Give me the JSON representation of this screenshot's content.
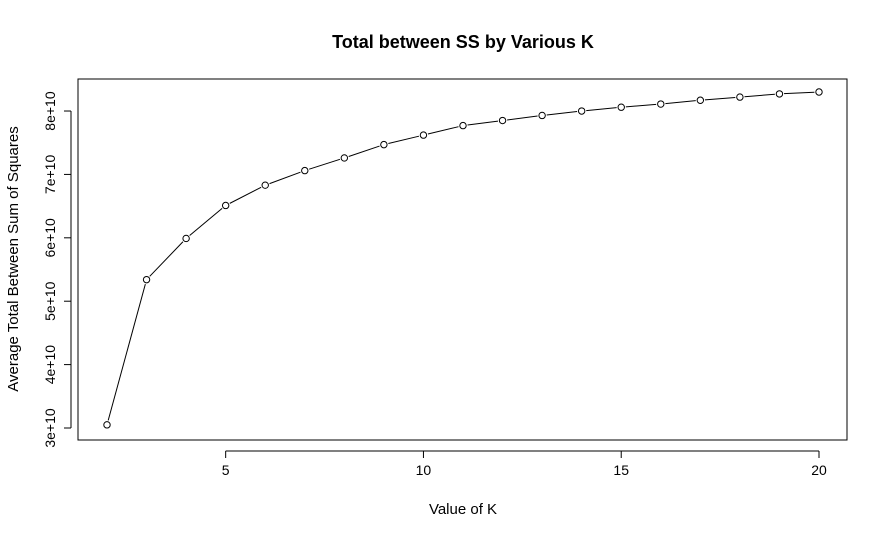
{
  "chart_data": {
    "type": "line",
    "title": "Total between SS by Various K",
    "xlabel": "Value of K",
    "ylabel": "Average Total Between Sum of Squares",
    "xlim": [
      2,
      20
    ],
    "ylim": [
      30000000000,
      83000000000
    ],
    "x_ticks": [
      5,
      10,
      15,
      20
    ],
    "x_tick_labels": [
      "5",
      "10",
      "15",
      "20"
    ],
    "y_ticks": [
      30000000000,
      40000000000,
      50000000000,
      60000000000,
      70000000000,
      80000000000
    ],
    "y_tick_labels": [
      "3e+10",
      "4e+10",
      "5e+10",
      "6e+10",
      "7e+10",
      "8e+10"
    ],
    "grid": false,
    "marker": "open-circle",
    "series": [
      {
        "x": [
          2,
          3,
          4,
          5,
          6,
          7,
          8,
          9,
          10,
          11,
          12,
          13,
          14,
          15,
          16,
          17,
          18,
          19,
          20
        ],
        "values": [
          30500000000,
          53400000000,
          59900000000,
          65100000000,
          68300000000,
          70600000000,
          72600000000,
          74700000000,
          76200000000,
          77700000000,
          78500000000,
          79300000000,
          80000000000,
          80600000000,
          81100000000,
          81700000000,
          82200000000,
          82700000000,
          83000000000
        ]
      }
    ]
  }
}
